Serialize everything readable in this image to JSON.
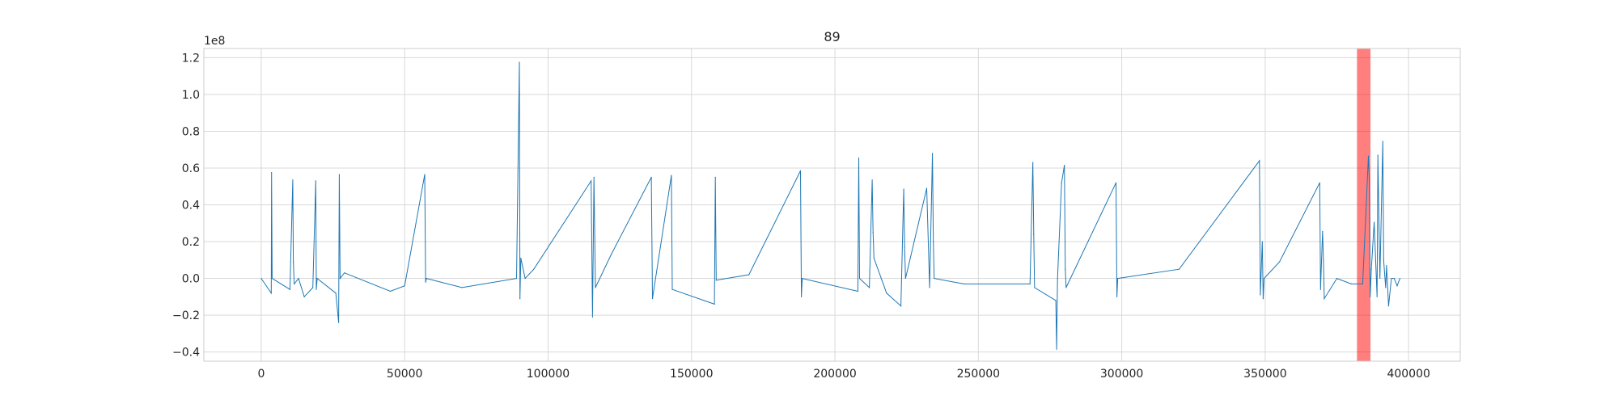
{
  "chart_data": {
    "type": "line",
    "title": "89",
    "xlabel": "",
    "ylabel": "",
    "y_offset_label": "1e8",
    "xlim": [
      -20000,
      418000
    ],
    "ylim": [
      -0.45,
      1.25
    ],
    "x_ticks": [
      0,
      50000,
      100000,
      150000,
      200000,
      250000,
      300000,
      350000,
      400000
    ],
    "x_tick_labels": [
      "0",
      "50000",
      "100000",
      "150000",
      "200000",
      "250000",
      "300000",
      "350000",
      "400000"
    ],
    "y_ticks": [
      -0.4,
      -0.2,
      0.0,
      0.2,
      0.4,
      0.6,
      0.8,
      1.0,
      1.2
    ],
    "y_tick_labels": [
      "−0.4",
      "−0.2",
      "0.0",
      "0.2",
      "0.4",
      "0.6",
      "0.8",
      "1.0",
      "1.2"
    ],
    "grid": true,
    "series_color": "#1f77b4",
    "highlight": {
      "x_start": 382000,
      "x_end": 386700,
      "color": "#ff0000",
      "alpha": 0.5
    },
    "series": [
      {
        "x": [
          0,
          3500,
          3600,
          3800,
          10000,
          11000,
          11200,
          11500,
          13000,
          15000,
          18000,
          19000,
          19200,
          19500,
          26000,
          27000,
          27200,
          27500,
          29000,
          45000,
          50000,
          57000,
          57300,
          57600,
          70000,
          89000,
          90000,
          90200,
          90500,
          92000,
          95000,
          115000,
          115500,
          116000,
          116500,
          122000,
          136000,
          136400,
          143000,
          143300,
          158000,
          158300,
          158600,
          170000,
          188000,
          188300,
          188600,
          208000,
          208300,
          208600,
          212000,
          213000,
          213300,
          213600,
          218000,
          223000,
          224000,
          224300,
          224600,
          232000,
          233000,
          234000,
          234300,
          234600,
          245000,
          268000,
          269000,
          269300,
          269600,
          277000,
          277300,
          277600,
          279000,
          280000,
          280300,
          280600,
          298000,
          298300,
          298600,
          320000,
          348000,
          348300,
          349000,
          349300,
          349600,
          355000,
          369000,
          369300,
          370000,
          370300,
          370600,
          375000,
          380000,
          384000,
          386000,
          386300,
          386600,
          387000,
          388000,
          389000,
          389300,
          390000,
          391000,
          391300,
          392000,
          392300,
          393000,
          394000,
          395000,
          396000,
          397000
        ],
        "y": [
          0.0,
          -0.08,
          0.575,
          0.0,
          -0.06,
          0.535,
          0.09,
          -0.03,
          0.0,
          -0.1,
          -0.05,
          0.53,
          -0.06,
          0.0,
          -0.08,
          -0.24,
          0.565,
          0.0,
          0.03,
          -0.07,
          -0.04,
          0.565,
          -0.02,
          0.0,
          -0.05,
          0.0,
          1.175,
          -0.11,
          0.11,
          0.0,
          0.05,
          0.53,
          -0.21,
          0.55,
          -0.05,
          0.13,
          0.55,
          -0.11,
          0.56,
          -0.06,
          -0.14,
          0.55,
          -0.01,
          0.02,
          0.585,
          -0.1,
          0.0,
          -0.07,
          0.655,
          0.0,
          -0.05,
          0.535,
          0.25,
          0.11,
          -0.08,
          -0.15,
          0.485,
          0.17,
          0.0,
          0.49,
          -0.05,
          0.68,
          0.2,
          0.0,
          -0.03,
          -0.03,
          0.63,
          0.24,
          -0.05,
          -0.12,
          -0.385,
          0.0,
          0.52,
          0.615,
          0.05,
          -0.05,
          0.52,
          -0.1,
          0.0,
          0.05,
          0.64,
          -0.09,
          0.2,
          -0.11,
          0.0,
          0.09,
          0.52,
          -0.06,
          0.255,
          0.1,
          -0.11,
          0.0,
          -0.03,
          -0.03,
          0.665,
          0.53,
          -0.1,
          0.05,
          0.305,
          -0.1,
          0.67,
          0.0,
          0.745,
          0.1,
          -0.05,
          0.07,
          -0.15,
          0.0,
          0.0,
          -0.04,
          0.0
        ]
      }
    ]
  }
}
